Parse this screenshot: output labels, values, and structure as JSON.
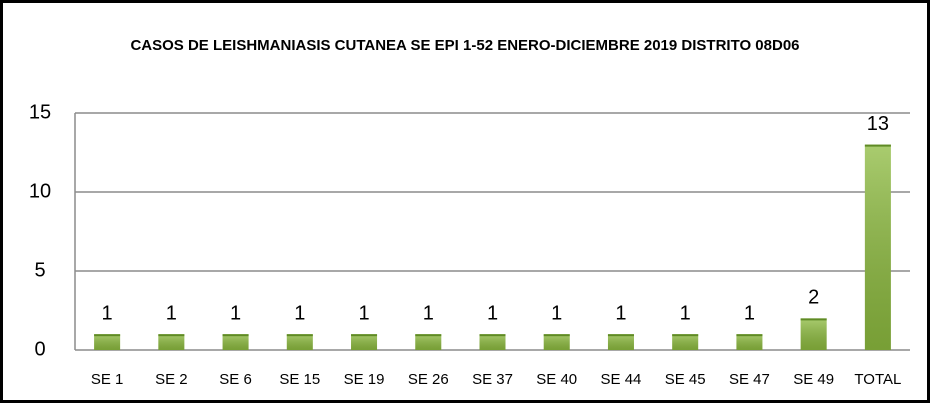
{
  "chart_data": {
    "type": "bar",
    "title": "CASOS DE LEISHMANIASIS CUTANEA SE EPI 1-52 ENERO-DICIEMBRE 2019 DISTRITO 08D06",
    "categories": [
      "SE 1",
      "SE 2",
      "SE 6",
      "SE 15",
      "SE 19",
      "SE 26",
      "SE 37",
      "SE 40",
      "SE 44",
      "SE 45",
      "SE 47",
      "SE 49",
      "TOTAL"
    ],
    "values": [
      1,
      1,
      1,
      1,
      1,
      1,
      1,
      1,
      1,
      1,
      1,
      2,
      13
    ],
    "color": "#8dbb3f",
    "ylim": [
      0,
      15
    ],
    "yticks": [
      0,
      5,
      10,
      15
    ],
    "grid": true
  }
}
